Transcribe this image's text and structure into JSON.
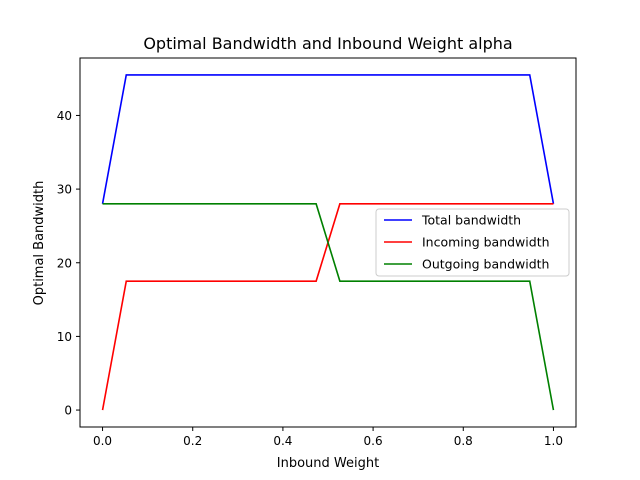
{
  "chart_data": {
    "type": "line",
    "title": "Optimal Bandwidth and Inbound Weight alpha",
    "xlabel": "Inbound Weight",
    "ylabel": "Optimal Bandwidth",
    "xlim": [
      -0.05,
      1.05
    ],
    "ylim": [
      -2.3,
      47.8
    ],
    "xticks": [
      0.0,
      0.2,
      0.4,
      0.6,
      0.8,
      1.0
    ],
    "xtick_labels": [
      "0.0",
      "0.2",
      "0.4",
      "0.6",
      "0.8",
      "1.0"
    ],
    "yticks": [
      0,
      10,
      20,
      30,
      40
    ],
    "ytick_labels": [
      "0",
      "10",
      "20",
      "30",
      "40"
    ],
    "grid": false,
    "legend_position": "center-right",
    "series": [
      {
        "name": "Total bandwidth",
        "color": "#0000ff",
        "x": [
          0.0,
          0.0526,
          0.1053,
          0.4737,
          0.5263,
          0.9474,
          1.0
        ],
        "y": [
          28.0,
          45.5,
          45.5,
          45.5,
          45.5,
          45.5,
          28.0
        ]
      },
      {
        "name": "Incoming bandwidth",
        "color": "#ff0000",
        "x": [
          0.0,
          0.0526,
          0.1053,
          0.4737,
          0.5263,
          0.9474,
          1.0
        ],
        "y": [
          0.0,
          17.5,
          17.5,
          17.5,
          28.0,
          28.0,
          28.0
        ]
      },
      {
        "name": "Outgoing bandwidth",
        "color": "#008000",
        "x": [
          0.0,
          0.0526,
          0.1053,
          0.4737,
          0.5263,
          0.9474,
          1.0
        ],
        "y": [
          28.0,
          28.0,
          28.0,
          28.0,
          17.5,
          17.5,
          0.0
        ]
      }
    ]
  }
}
